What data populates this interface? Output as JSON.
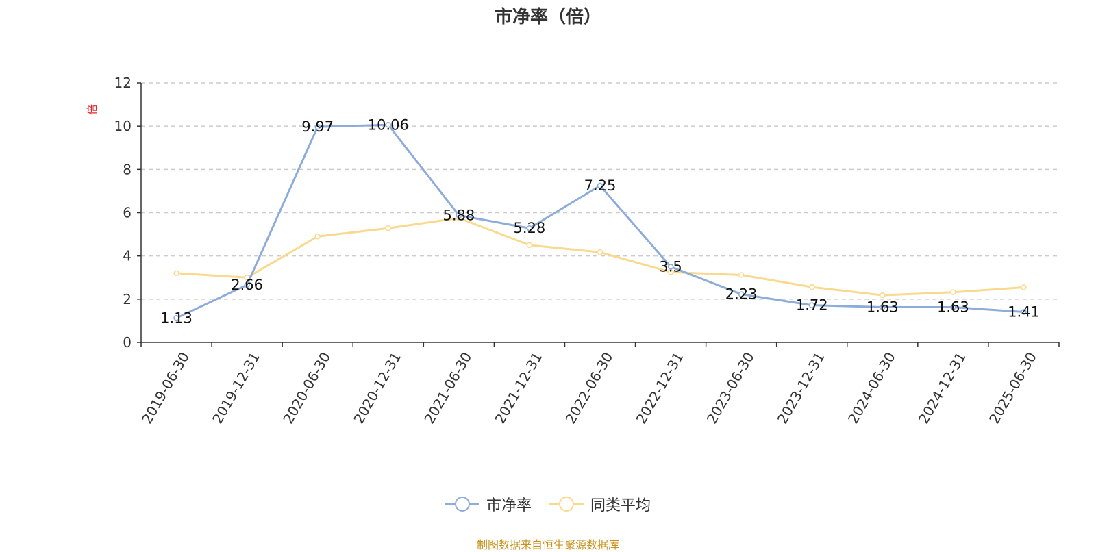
{
  "chart_data": {
    "type": "line",
    "title": "市净率（倍）",
    "ylabel": "倍",
    "categories": [
      "2019-06-30",
      "2019-12-31",
      "2020-06-30",
      "2020-12-31",
      "2021-06-30",
      "2021-12-31",
      "2022-06-30",
      "2022-12-31",
      "2023-06-30",
      "2023-12-31",
      "2024-06-30",
      "2024-12-31",
      "2025-06-30"
    ],
    "ylim": [
      0,
      12
    ],
    "yticks": [
      0,
      2,
      4,
      6,
      8,
      10,
      12
    ],
    "grid": true,
    "legend_position": "bottom",
    "series": [
      {
        "name": "市净率",
        "color": "#8eacd9",
        "values": [
          1.13,
          2.66,
          9.97,
          10.06,
          5.88,
          5.28,
          7.25,
          3.5,
          2.23,
          1.72,
          1.63,
          1.63,
          1.41
        ],
        "labels": [
          "1.13",
          "2.66",
          "9.97",
          "10.06",
          "5.88",
          "5.28",
          "7.25",
          "3.5",
          "2.23",
          "1.72",
          "1.63",
          "1.63",
          "1.41"
        ]
      },
      {
        "name": "同类平均",
        "color": "#fad98f",
        "values": [
          3.2,
          3.0,
          4.9,
          5.28,
          5.75,
          4.5,
          4.17,
          3.25,
          3.12,
          2.56,
          2.18,
          2.32,
          2.55
        ]
      }
    ]
  },
  "source_note": "制图数据来自恒生聚源数据库"
}
